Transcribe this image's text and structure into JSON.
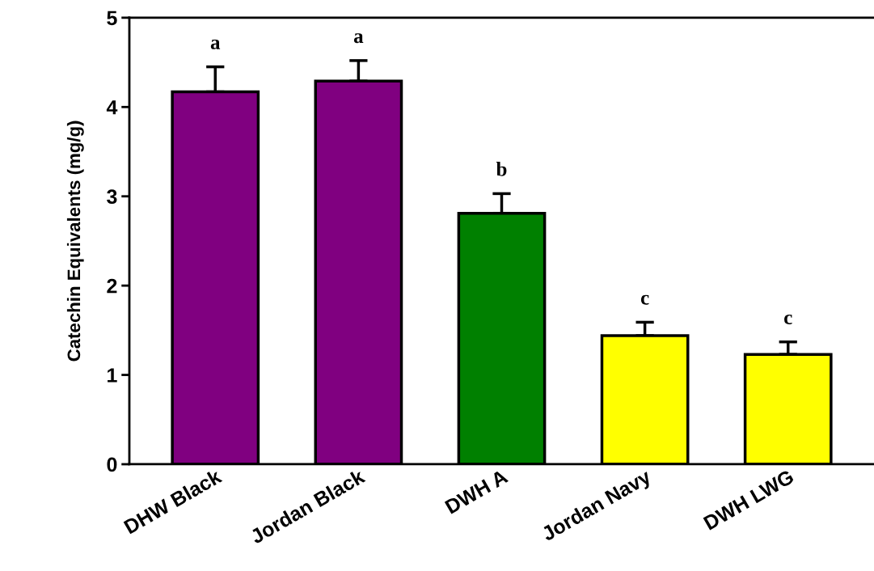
{
  "chart_data": {
    "type": "bar",
    "ylabel": "Catechin Equivalents (mg/g)",
    "categories": [
      "DHW Black",
      "Jordan Black",
      "DWH A",
      "Jordan Navy",
      "DWH LWG"
    ],
    "values": [
      4.17,
      4.29,
      2.81,
      1.44,
      1.23
    ],
    "errors": [
      0.28,
      0.23,
      0.22,
      0.15,
      0.14
    ],
    "colors": [
      "#800080",
      "#800080",
      "#008000",
      "#ffff00",
      "#ffff00"
    ],
    "ylim": [
      0,
      5
    ],
    "yticks": [
      0,
      1,
      2,
      3,
      4,
      5
    ],
    "grid": false,
    "legend": false,
    "annotations": [
      "a",
      "a",
      "b",
      "c",
      "c"
    ]
  }
}
